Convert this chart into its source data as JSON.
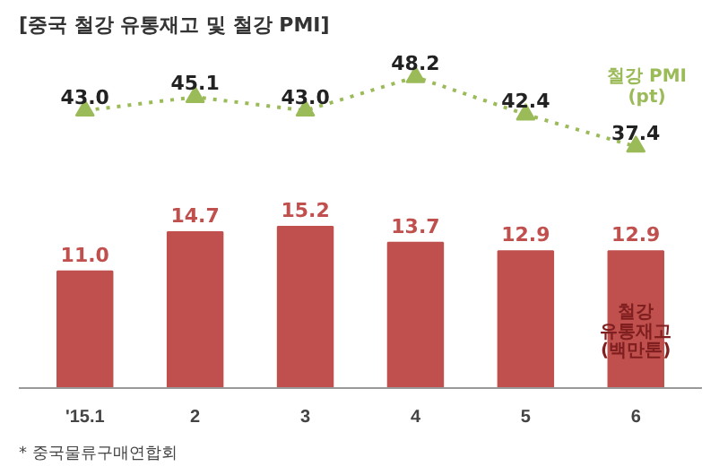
{
  "chart_data": [
    {
      "type": "line",
      "title": "[중국 철강 유통재고 및 철강 PMI]",
      "categories": [
        null,
        null,
        null,
        null,
        null,
        null
      ],
      "series": [
        {
          "name": "철강 PMI\n(pt)",
          "color": "#9bbb59",
          "values": [
            43.0,
            45.1,
            43.0,
            48.2,
            42.4,
            37.4
          ],
          "value_labels": [
            "43.0",
            "45.1",
            "43.0",
            "48.2",
            "42.4",
            "37.4"
          ]
        }
      ],
      "marker": "triangle",
      "line_style": "dotted",
      "data_labels": true,
      "grid": false,
      "tick_labels": false
    },
    {
      "type": "bar",
      "categories": [
        "'15.1",
        "2",
        "3",
        "4",
        "5",
        "6"
      ],
      "series": [
        {
          "name": "철강\n유통재고\n(백만톤)",
          "color": "#c0504d",
          "values": [
            11.0,
            14.7,
            15.2,
            13.7,
            12.9,
            12.9
          ],
          "value_labels": [
            "11.0",
            "14.7",
            "15.2",
            "13.7",
            "12.9",
            "12.9"
          ]
        }
      ],
      "data_labels": true,
      "grid": false,
      "tick_labels": "x",
      "annotations": [
        "* 중국물류구매연합회"
      ]
    }
  ]
}
